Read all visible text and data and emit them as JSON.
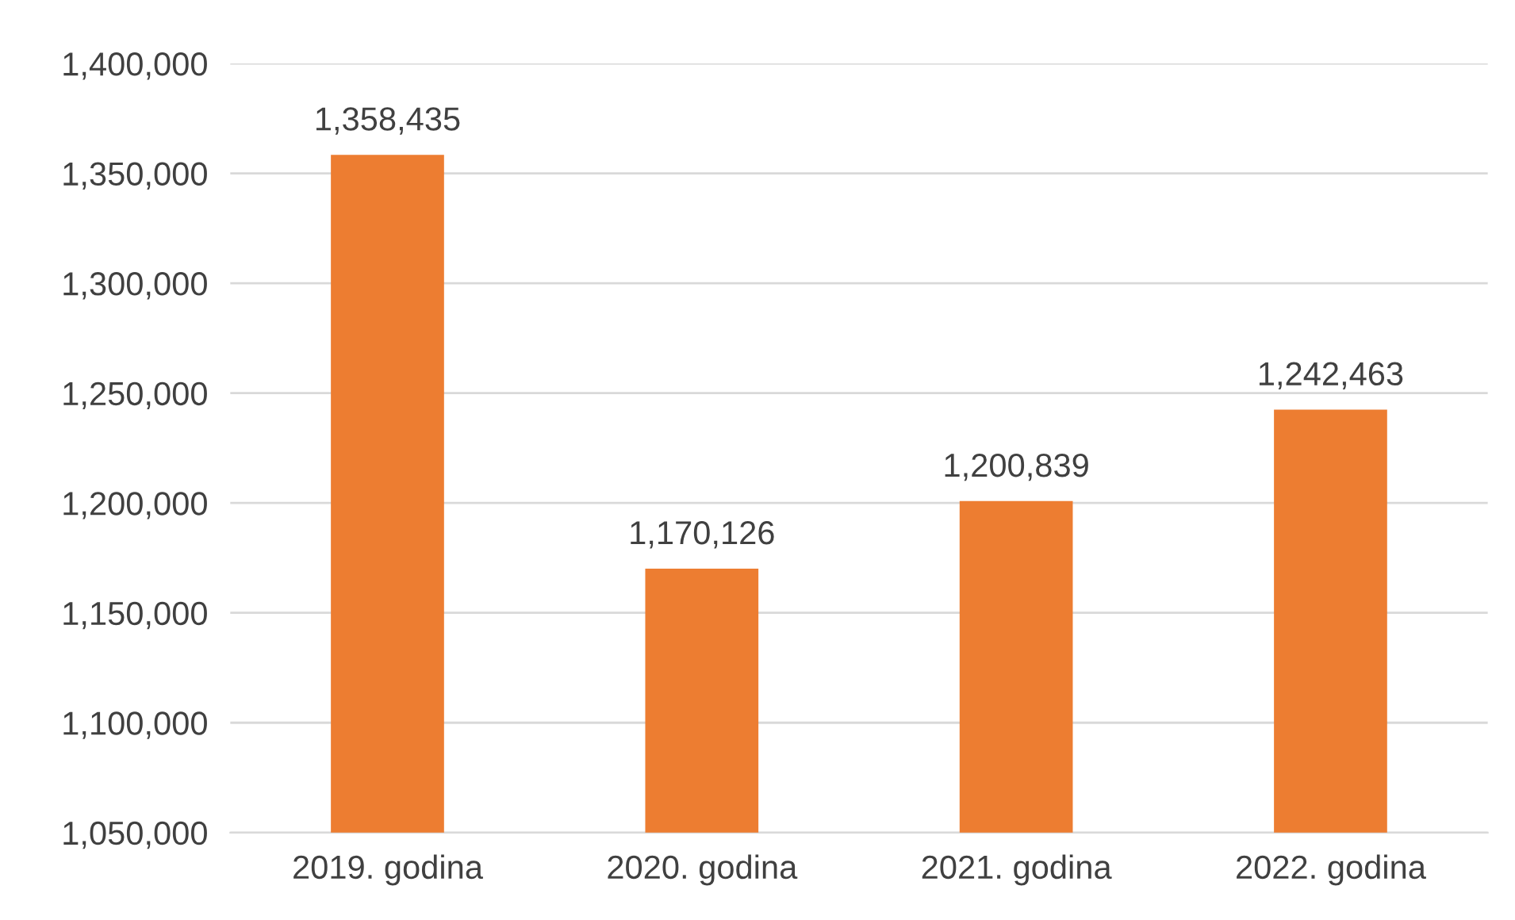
{
  "chart_data": {
    "type": "bar",
    "categories": [
      "2019. godina",
      "2020. godina",
      "2021. godina",
      "2022. godina"
    ],
    "values": [
      1358435,
      1170126,
      1200839,
      1242463
    ],
    "value_labels": [
      "1,358,435",
      "1,170,126",
      "1,200,839",
      "1,242,463"
    ],
    "color": "#ed7d31",
    "ylim": [
      1050000,
      1400000
    ],
    "yticks": [
      {
        "value": 1050000,
        "label": "1,050,000"
      },
      {
        "value": 1100000,
        "label": "1,100,000"
      },
      {
        "value": 1150000,
        "label": "1,150,000"
      },
      {
        "value": 1200000,
        "label": "1,200,000"
      },
      {
        "value": 1250000,
        "label": "1,250,000"
      },
      {
        "value": 1300000,
        "label": "1,300,000"
      },
      {
        "value": 1350000,
        "label": "1,350,000"
      },
      {
        "value": 1400000,
        "label": "1,400,000"
      }
    ],
    "grid": "y"
  }
}
